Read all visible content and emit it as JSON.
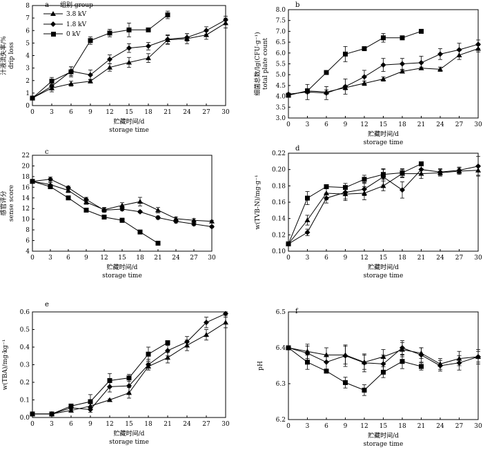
{
  "legend": {
    "title": "组别 group",
    "items": [
      {
        "key": "s38",
        "label": "3.8 kV",
        "marker": "triangle"
      },
      {
        "key": "s18",
        "label": "1.8 kV",
        "marker": "diamond"
      },
      {
        "key": "s0",
        "label": "0 kV",
        "marker": "square"
      }
    ]
  },
  "colors": {
    "ink": "#000000",
    "background": "#ffffff"
  },
  "chart_data": [
    {
      "id": "a",
      "type": "line",
      "panel_label": "a",
      "xlabel_cn": "贮藏时间/d",
      "xlabel_en": "storage time",
      "ylabel_cn": "汁液流失率/%",
      "ylabel_en": "drip loss",
      "xlim": [
        0,
        30
      ],
      "ylim": [
        0,
        8
      ],
      "xticks": [
        0,
        3,
        6,
        9,
        12,
        15,
        18,
        21,
        24,
        27,
        30
      ],
      "yticks": [
        0,
        1,
        2,
        3,
        4,
        5,
        6,
        7,
        8
      ],
      "tick_decimals": 0,
      "legend_position": "top-left",
      "grid": false,
      "series": [
        {
          "key": "s38",
          "x": [
            0,
            3,
            6,
            9,
            12,
            15,
            18,
            21,
            24,
            27,
            30
          ],
          "y": [
            0.6,
            1.4,
            1.75,
            1.95,
            3.05,
            3.45,
            3.8,
            5.25,
            5.35,
            5.65,
            6.6
          ],
          "err": [
            0.1,
            0.3,
            0.2,
            0.15,
            0.3,
            0.4,
            0.35,
            0.35,
            0.4,
            0.35,
            0.4
          ]
        },
        {
          "key": "s18",
          "x": [
            0,
            3,
            6,
            9,
            12,
            15,
            18,
            21,
            24,
            27,
            30
          ],
          "y": [
            0.6,
            1.55,
            2.75,
            2.45,
            3.7,
            4.6,
            4.75,
            5.3,
            5.45,
            6.0,
            6.85
          ],
          "err": [
            0.1,
            0.3,
            0.35,
            0.4,
            0.35,
            0.35,
            0.3,
            0.35,
            0.3,
            0.3,
            0.3
          ]
        },
        {
          "key": "s0",
          "x": [
            0,
            3,
            6,
            9,
            12,
            15,
            18,
            21
          ],
          "y": [
            0.6,
            1.95,
            2.7,
            5.2,
            5.8,
            6.05,
            6.05,
            7.25
          ],
          "err": [
            0.1,
            0.3,
            0.4,
            0.3,
            0.3,
            0.55,
            0.05,
            0.3
          ]
        }
      ]
    },
    {
      "id": "b",
      "type": "line",
      "panel_label": "b",
      "xlabel_cn": "贮藏时间/d",
      "xlabel_en": "storage time",
      "ylabel_cn": "细菌总数/lg(CFU·g⁻¹)",
      "ylabel_en": "total plate count",
      "xlim": [
        0,
        30
      ],
      "ylim": [
        3.0,
        8.0
      ],
      "xticks": [
        0,
        3,
        6,
        9,
        12,
        15,
        18,
        21,
        24,
        27,
        30
      ],
      "yticks": [
        3.0,
        3.5,
        4.0,
        4.5,
        5.0,
        5.5,
        6.0,
        6.5,
        7.0,
        7.5,
        8.0
      ],
      "tick_decimals": 1,
      "grid": false,
      "series": [
        {
          "key": "s38",
          "x": [
            0,
            3,
            6,
            9,
            12,
            15,
            18,
            21,
            24,
            27,
            30
          ],
          "y": [
            4.05,
            4.25,
            4.2,
            4.4,
            4.6,
            4.8,
            5.15,
            5.3,
            5.25,
            5.9,
            6.2
          ],
          "err": [
            0.05,
            0.1,
            0.1,
            0.1,
            0.1,
            0.1,
            0.05,
            0.05,
            0.1,
            0.2,
            0.15
          ]
        },
        {
          "key": "s18",
          "x": [
            0,
            3,
            6,
            9,
            12,
            15,
            18,
            21,
            24,
            27,
            30
          ],
          "y": [
            4.1,
            4.2,
            4.15,
            4.45,
            4.9,
            5.45,
            5.5,
            5.55,
            5.95,
            6.15,
            6.4
          ],
          "err": [
            0.05,
            0.35,
            0.3,
            0.35,
            0.3,
            0.3,
            0.25,
            0.3,
            0.25,
            0.3,
            0.2
          ]
        },
        {
          "key": "s0",
          "x": [
            0,
            3,
            6,
            9,
            12,
            15,
            18,
            21
          ],
          "y": [
            4.05,
            4.25,
            5.1,
            5.95,
            6.2,
            6.7,
            6.7,
            7.0
          ],
          "err": [
            0.05,
            0.1,
            0.05,
            0.35,
            0.05,
            0.2,
            0.05,
            0.05
          ]
        }
      ]
    },
    {
      "id": "c",
      "type": "line",
      "panel_label": "c",
      "xlabel_cn": "贮藏时间/d",
      "xlabel_en": "storage time",
      "ylabel_cn": "感官评分",
      "ylabel_en": "sense score",
      "xlim": [
        0,
        30
      ],
      "ylim": [
        4,
        22
      ],
      "xticks": [
        0,
        3,
        6,
        9,
        12,
        15,
        18,
        21,
        24,
        27,
        30
      ],
      "yticks": [
        4,
        6,
        8,
        10,
        12,
        14,
        16,
        18,
        20,
        22
      ],
      "tick_decimals": 0,
      "grid": false,
      "series": [
        {
          "key": "s38",
          "x": [
            0,
            3,
            6,
            9,
            12,
            15,
            18,
            21,
            24,
            27,
            30
          ],
          "y": [
            17.1,
            16.5,
            15.4,
            13.2,
            11.8,
            12.6,
            13.3,
            11.7,
            10.1,
            9.8,
            9.6
          ],
          "err": [
            0.2,
            0.4,
            0.4,
            0.4,
            0.4,
            0.5,
            0.8,
            0.5,
            0.3,
            0.3,
            0.2
          ]
        },
        {
          "key": "s18",
          "x": [
            0,
            3,
            6,
            9,
            12,
            15,
            18,
            21,
            24,
            27,
            30
          ],
          "y": [
            17.1,
            17.5,
            15.9,
            13.7,
            11.7,
            11.9,
            11.4,
            10.3,
            9.6,
            9.1,
            8.6
          ],
          "err": [
            0.2,
            0.4,
            0.3,
            0.4,
            0.4,
            0.3,
            0.2,
            0.3,
            0.3,
            0.3,
            0.2
          ]
        },
        {
          "key": "s0",
          "x": [
            0,
            3,
            6,
            9,
            12,
            15,
            18,
            21
          ],
          "y": [
            17.1,
            16.1,
            14.0,
            11.7,
            10.4,
            9.8,
            7.6,
            5.5
          ],
          "err": [
            0.2,
            0.3,
            0.2,
            0.3,
            0.2,
            0.4,
            0.1,
            0.1
          ]
        }
      ]
    },
    {
      "id": "d",
      "type": "line",
      "panel_label": "d",
      "xlabel_cn": "贮藏时间/d",
      "xlabel_en": "storage time",
      "ylabel_cn": "w(TVB-N)/mg·g⁻¹",
      "ylabel_en": "",
      "xlim": [
        0,
        30
      ],
      "ylim": [
        0.1,
        0.22
      ],
      "xticks": [
        0,
        3,
        6,
        9,
        12,
        15,
        18,
        21,
        24,
        27,
        30
      ],
      "yticks": [
        0.1,
        0.12,
        0.14,
        0.16,
        0.18,
        0.2,
        0.22
      ],
      "tick_decimals": 2,
      "grid": false,
      "series": [
        {
          "key": "s38",
          "x": [
            0,
            3,
            6,
            9,
            12,
            15,
            18,
            21,
            24,
            27,
            30
          ],
          "y": [
            0.109,
            0.138,
            0.171,
            0.17,
            0.171,
            0.18,
            0.195,
            0.195,
            0.196,
            0.198,
            0.199
          ],
          "err": [
            0.002,
            0.006,
            0.008,
            0.008,
            0.008,
            0.006,
            0.005,
            0.006,
            0.004,
            0.004,
            0.006
          ]
        },
        {
          "key": "s18",
          "x": [
            0,
            3,
            6,
            9,
            12,
            15,
            18,
            21,
            24,
            27,
            30
          ],
          "y": [
            0.109,
            0.123,
            0.165,
            0.172,
            0.176,
            0.191,
            0.175,
            0.2,
            0.197,
            0.199,
            0.204
          ],
          "err": [
            0.002,
            0.004,
            0.006,
            0.008,
            0.008,
            0.01,
            0.01,
            0.005,
            0.004,
            0.004,
            0.012
          ]
        },
        {
          "key": "s0",
          "x": [
            0,
            3,
            6,
            9,
            12,
            15,
            18,
            21
          ],
          "y": [
            0.109,
            0.165,
            0.179,
            0.178,
            0.188,
            0.194,
            0.196,
            0.207
          ],
          "err": [
            0.002,
            0.008,
            0.002,
            0.005,
            0.005,
            0.006,
            0.005,
            0.002
          ]
        }
      ]
    },
    {
      "id": "e",
      "type": "line",
      "panel_label": "e",
      "xlabel_cn": "贮藏时间/d",
      "xlabel_en": "storage time",
      "ylabel_cn": "w(TBA)/mg·kg⁻¹",
      "ylabel_en": "",
      "xlim": [
        0,
        30
      ],
      "ylim": [
        0.0,
        0.6
      ],
      "xticks": [
        0,
        3,
        6,
        9,
        12,
        15,
        18,
        21,
        24,
        27,
        30
      ],
      "yticks": [
        0.0,
        0.1,
        0.2,
        0.3,
        0.4,
        0.5,
        0.6
      ],
      "tick_decimals": 1,
      "grid": false,
      "series": [
        {
          "key": "s38",
          "x": [
            0,
            3,
            6,
            9,
            12,
            15,
            18,
            21,
            24,
            27,
            30
          ],
          "y": [
            0.02,
            0.02,
            0.04,
            0.065,
            0.1,
            0.14,
            0.29,
            0.34,
            0.41,
            0.47,
            0.54
          ],
          "err": [
            0.005,
            0.005,
            0.01,
            0.02,
            0.005,
            0.03,
            0.02,
            0.03,
            0.03,
            0.03,
            0.03
          ]
        },
        {
          "key": "s18",
          "x": [
            0,
            3,
            6,
            9,
            12,
            15,
            18,
            21,
            24,
            27,
            30
          ],
          "y": [
            0.02,
            0.02,
            0.055,
            0.045,
            0.175,
            0.18,
            0.3,
            0.38,
            0.43,
            0.54,
            0.59
          ],
          "err": [
            0.005,
            0.005,
            0.01,
            0.015,
            0.03,
            0.04,
            0.03,
            0.03,
            0.03,
            0.03,
            0.01
          ]
        },
        {
          "key": "s0",
          "x": [
            0,
            3,
            6,
            9,
            12,
            15,
            18,
            21
          ],
          "y": [
            0.02,
            0.02,
            0.065,
            0.09,
            0.21,
            0.225,
            0.36,
            0.425
          ],
          "err": [
            0.005,
            0.005,
            0.01,
            0.04,
            0.04,
            0.02,
            0.04,
            0.01
          ]
        }
      ]
    },
    {
      "id": "f",
      "type": "line",
      "panel_label": "f",
      "xlabel_cn": "贮藏时间/d",
      "xlabel_en": "storage time",
      "ylabel_cn": "pH",
      "ylabel_en": "",
      "xlim": [
        0,
        30
      ],
      "ylim": [
        6.2,
        6.5
      ],
      "xticks": [
        0,
        3,
        6,
        9,
        12,
        15,
        18,
        21,
        24,
        27,
        30
      ],
      "yticks": [
        6.2,
        6.3,
        6.4,
        6.5
      ],
      "tick_decimals": 1,
      "grid": false,
      "series": [
        {
          "key": "s38",
          "x": [
            0,
            3,
            6,
            9,
            12,
            15,
            18,
            21,
            24,
            27,
            30
          ],
          "y": [
            6.4,
            6.39,
            6.38,
            6.38,
            6.36,
            6.375,
            6.395,
            6.385,
            6.355,
            6.37,
            6.375
          ],
          "err": [
            0.005,
            0.02,
            0.02,
            0.025,
            0.02,
            0.02,
            0.02,
            0.015,
            0.015,
            0.02,
            0.02
          ]
        },
        {
          "key": "s18",
          "x": [
            0,
            3,
            6,
            9,
            12,
            15,
            18,
            21,
            24,
            27,
            30
          ],
          "y": [
            6.4,
            6.385,
            6.36,
            6.378,
            6.358,
            6.355,
            6.4,
            6.38,
            6.35,
            6.358,
            6.375
          ],
          "err": [
            0.005,
            0.02,
            0.02,
            0.03,
            0.025,
            0.025,
            0.02,
            0.02,
            0.015,
            0.02,
            0.015
          ]
        },
        {
          "key": "s0",
          "x": [
            0,
            3,
            6,
            9,
            12,
            15,
            18,
            21
          ],
          "y": [
            6.4,
            6.36,
            6.335,
            6.303,
            6.282,
            6.332,
            6.362,
            6.348
          ],
          "err": [
            0.005,
            0.02,
            0.005,
            0.015,
            0.015,
            0.015,
            0.02,
            0.01
          ]
        }
      ]
    }
  ]
}
